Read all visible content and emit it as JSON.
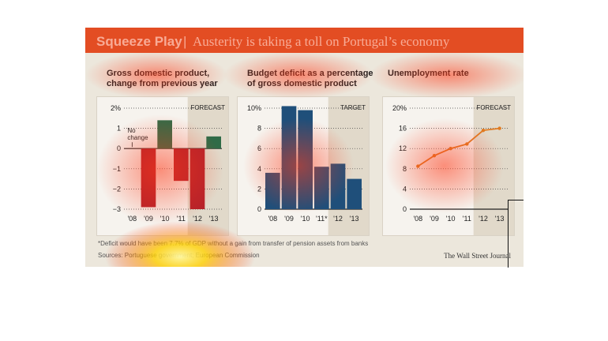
{
  "header": {
    "title_main": "Squeeze Play",
    "separator": "|",
    "title_sub": "Austerity is taking a toll on Portugal’s economy"
  },
  "footer": {
    "footnote": "*Deficit would have been 7.7% of GDP without a gain from transfer of pension assets from banks",
    "source": "Sources: Portuguese government; European Commission",
    "credit": "The Wall Street Journal"
  },
  "colors": {
    "header": "#d95b2c",
    "gdp_positive": "#2f6b47",
    "gdp_negative": "#b5212a",
    "deficit_bar": "#1f4f7a",
    "unemployment_line": "#e07b22",
    "shade": "#d9d0bd"
  },
  "chart_data": [
    {
      "type": "bar",
      "title": "Gross domestic product, change from previous year",
      "categories": [
        "'08",
        "'09",
        "'10",
        "'11",
        "'12",
        "'13"
      ],
      "values": [
        0.0,
        -2.9,
        1.4,
        -1.6,
        -3.0,
        0.6
      ],
      "y_ticks": [
        "2%",
        "1",
        "0",
        "−1",
        "−2",
        "−3"
      ],
      "ylim": [
        -3,
        2
      ],
      "shaded_from_index": 4,
      "shade_label": "FORECAST",
      "annotation": "No change",
      "grid": true
    },
    {
      "type": "bar",
      "title": "Budget deficit as a percentage of gross domestic product",
      "categories": [
        "'08",
        "'09",
        "'10",
        "'11*",
        "'12",
        "'13"
      ],
      "values": [
        3.6,
        10.2,
        9.8,
        4.2,
        4.5,
        3.0
      ],
      "y_ticks": [
        "10%",
        "8",
        "6",
        "4",
        "2",
        "0"
      ],
      "ylim": [
        0,
        10
      ],
      "shaded_from_index": 4,
      "shade_label": "TARGET",
      "grid": true
    },
    {
      "type": "line",
      "title": "Unemployment rate",
      "categories": [
        "'08",
        "'09",
        "'10",
        "'11",
        "'12",
        "'13"
      ],
      "values": [
        8.5,
        10.6,
        12.0,
        12.9,
        15.6,
        16.0
      ],
      "y_ticks": [
        "20%",
        "16",
        "12",
        "8",
        "4",
        "0"
      ],
      "ylim": [
        0,
        20
      ],
      "shaded_from_index": 4,
      "shade_label": "FORECAST",
      "grid": true
    }
  ]
}
